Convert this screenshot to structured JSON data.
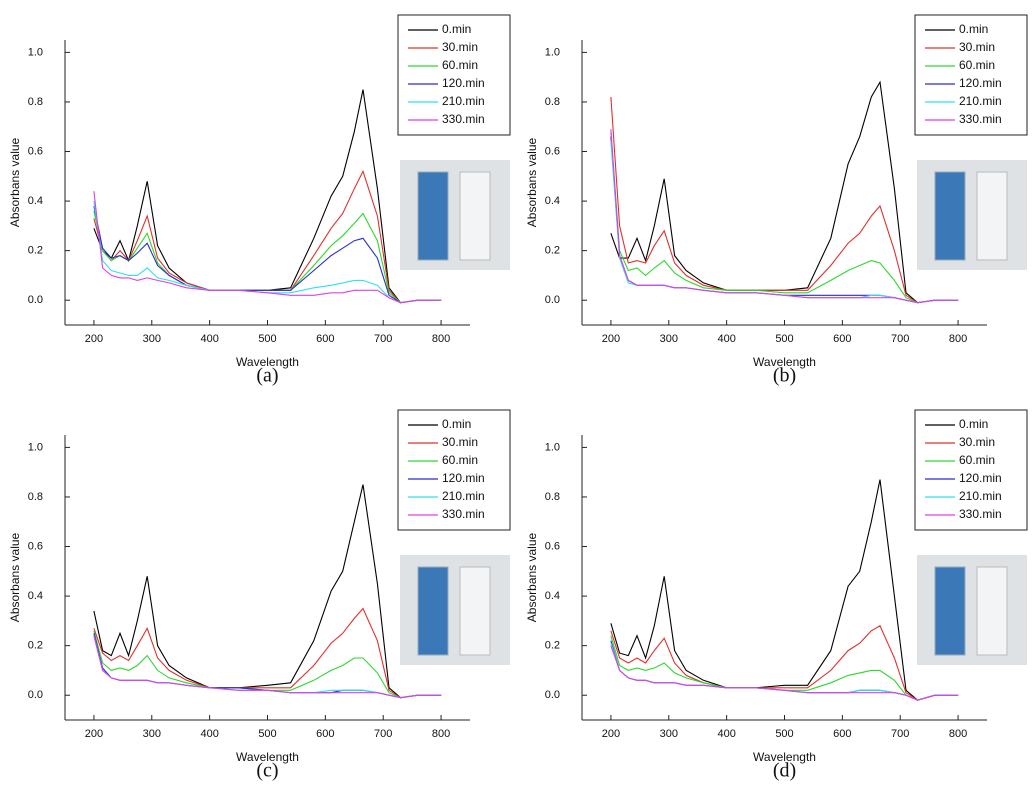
{
  "chart_data": [
    {
      "type": "line",
      "caption": "(a)",
      "xlabel": "Wavelength",
      "ylabel": "Absorbans value",
      "legend": "upper right",
      "x": [
        200,
        215,
        230,
        245,
        260,
        275,
        292,
        310,
        330,
        360,
        400,
        450,
        500,
        540,
        580,
        610,
        630,
        650,
        665,
        690,
        710,
        730,
        760,
        800
      ],
      "xlim": [
        150,
        850
      ],
      "xticks": [
        200,
        300,
        400,
        500,
        600,
        700,
        800
      ],
      "ylim": [
        -0.1,
        1.05
      ],
      "yticks": [
        {
          "value": 0,
          "label": "0.0"
        },
        0.2,
        0.4,
        0.6,
        0.8,
        {
          "value": 1,
          "label": "1.0"
        }
      ],
      "series": [
        {
          "name": "0.min",
          "color": "#000000",
          "values": [
            0.29,
            0.2,
            0.17,
            0.24,
            0.16,
            0.3,
            0.48,
            0.22,
            0.13,
            0.07,
            0.04,
            0.04,
            0.04,
            0.05,
            0.25,
            0.42,
            0.5,
            0.68,
            0.85,
            0.45,
            0.05,
            -0.01,
            0.0,
            0.0
          ]
        },
        {
          "name": "30.min",
          "color": "#e0302a",
          "values": [
            0.33,
            0.2,
            0.16,
            0.2,
            0.16,
            0.24,
            0.34,
            0.17,
            0.11,
            0.07,
            0.04,
            0.04,
            0.04,
            0.04,
            0.18,
            0.29,
            0.35,
            0.45,
            0.52,
            0.34,
            0.04,
            -0.01,
            0.0,
            0.0
          ]
        },
        {
          "name": "60.min",
          "color": "#2dd82d",
          "values": [
            0.36,
            0.2,
            0.16,
            0.18,
            0.16,
            0.21,
            0.27,
            0.15,
            0.1,
            0.06,
            0.04,
            0.04,
            0.04,
            0.04,
            0.14,
            0.22,
            0.26,
            0.31,
            0.35,
            0.24,
            0.03,
            -0.01,
            0.0,
            0.0
          ]
        },
        {
          "name": "120.min",
          "color": "#2b2bd0",
          "values": [
            0.38,
            0.21,
            0.17,
            0.18,
            0.16,
            0.19,
            0.23,
            0.14,
            0.1,
            0.06,
            0.04,
            0.04,
            0.04,
            0.04,
            0.12,
            0.18,
            0.21,
            0.24,
            0.25,
            0.17,
            0.02,
            -0.01,
            0.0,
            0.0
          ]
        },
        {
          "name": "210.min",
          "color": "#2fe0f0",
          "values": [
            0.4,
            0.16,
            0.12,
            0.11,
            0.1,
            0.1,
            0.13,
            0.09,
            0.08,
            0.06,
            0.04,
            0.04,
            0.03,
            0.03,
            0.05,
            0.06,
            0.07,
            0.08,
            0.08,
            0.06,
            0.01,
            -0.01,
            0.0,
            0.0
          ]
        },
        {
          "name": "330.min",
          "color": "#e040e0",
          "values": [
            0.44,
            0.13,
            0.1,
            0.09,
            0.09,
            0.08,
            0.09,
            0.08,
            0.07,
            0.05,
            0.04,
            0.04,
            0.03,
            0.02,
            0.02,
            0.03,
            0.03,
            0.04,
            0.04,
            0.04,
            0.01,
            -0.01,
            0.0,
            0.0
          ]
        }
      ]
    },
    {
      "type": "line",
      "caption": "(b)",
      "xlabel": "Wavelength",
      "ylabel": "Absorbans value",
      "legend": "upper right",
      "x": [
        200,
        215,
        230,
        245,
        260,
        275,
        292,
        310,
        330,
        360,
        400,
        450,
        500,
        540,
        580,
        610,
        630,
        650,
        665,
        690,
        710,
        730,
        760,
        800
      ],
      "xlim": [
        150,
        850
      ],
      "xticks": [
        200,
        300,
        400,
        500,
        600,
        700,
        800
      ],
      "ylim": [
        -0.1,
        1.05
      ],
      "yticks": [
        {
          "value": 0,
          "label": "0.0"
        },
        0.2,
        0.4,
        0.6,
        0.8,
        {
          "value": 1,
          "label": "1.0"
        }
      ],
      "series": [
        {
          "name": "0.min",
          "color": "#000000",
          "values": [
            0.27,
            0.17,
            0.17,
            0.25,
            0.16,
            0.3,
            0.49,
            0.18,
            0.12,
            0.07,
            0.04,
            0.04,
            0.04,
            0.05,
            0.25,
            0.55,
            0.66,
            0.82,
            0.88,
            0.45,
            0.03,
            -0.01,
            0.0,
            0.0
          ]
        },
        {
          "name": "30.min",
          "color": "#e0302a",
          "values": [
            0.82,
            0.3,
            0.15,
            0.16,
            0.15,
            0.22,
            0.28,
            0.15,
            0.1,
            0.06,
            0.04,
            0.04,
            0.04,
            0.04,
            0.14,
            0.23,
            0.27,
            0.34,
            0.38,
            0.2,
            0.02,
            -0.01,
            0.0,
            0.0
          ]
        },
        {
          "name": "60.min",
          "color": "#2dd82d",
          "values": [
            0.68,
            0.2,
            0.12,
            0.13,
            0.1,
            0.13,
            0.16,
            0.11,
            0.08,
            0.05,
            0.04,
            0.04,
            0.03,
            0.03,
            0.08,
            0.12,
            0.14,
            0.16,
            0.15,
            0.08,
            0.01,
            -0.01,
            0.0,
            0.0
          ]
        },
        {
          "name": "120.min",
          "color": "#2b2bd0",
          "values": [
            0.66,
            0.18,
            0.08,
            0.06,
            0.06,
            0.06,
            0.06,
            0.05,
            0.05,
            0.04,
            0.03,
            0.03,
            0.02,
            0.02,
            0.02,
            0.02,
            0.02,
            0.02,
            0.02,
            0.01,
            0.0,
            -0.01,
            0.0,
            0.0
          ]
        },
        {
          "name": "210.min",
          "color": "#2fe0f0",
          "values": [
            0.64,
            0.17,
            0.07,
            0.06,
            0.06,
            0.06,
            0.06,
            0.05,
            0.05,
            0.04,
            0.03,
            0.03,
            0.02,
            0.01,
            0.01,
            0.01,
            0.01,
            0.02,
            0.02,
            0.01,
            0.0,
            -0.01,
            0.0,
            0.0
          ]
        },
        {
          "name": "330.min",
          "color": "#e040e0",
          "values": [
            0.69,
            0.18,
            0.08,
            0.06,
            0.06,
            0.06,
            0.06,
            0.05,
            0.05,
            0.04,
            0.03,
            0.03,
            0.02,
            0.01,
            0.01,
            0.01,
            0.01,
            0.01,
            0.01,
            0.01,
            0.0,
            -0.01,
            0.0,
            0.0
          ]
        }
      ]
    },
    {
      "type": "line",
      "caption": "(c)",
      "xlabel": "Wavelength",
      "ylabel": "Absorbans value",
      "legend": "upper right",
      "x": [
        200,
        215,
        230,
        245,
        260,
        275,
        292,
        310,
        330,
        360,
        400,
        450,
        500,
        540,
        580,
        610,
        630,
        650,
        665,
        690,
        710,
        730,
        760,
        800
      ],
      "xlim": [
        150,
        850
      ],
      "xticks": [
        200,
        300,
        400,
        500,
        600,
        700,
        800
      ],
      "ylim": [
        -0.1,
        1.05
      ],
      "yticks": [
        {
          "value": 0,
          "label": "0.0"
        },
        0.2,
        0.4,
        0.6,
        0.8,
        {
          "value": 1,
          "label": "1.0"
        }
      ],
      "series": [
        {
          "name": "0.min",
          "color": "#000000",
          "values": [
            0.34,
            0.18,
            0.16,
            0.25,
            0.16,
            0.3,
            0.48,
            0.2,
            0.12,
            0.07,
            0.03,
            0.03,
            0.04,
            0.05,
            0.22,
            0.42,
            0.5,
            0.7,
            0.85,
            0.45,
            0.03,
            -0.01,
            0.0,
            0.0
          ]
        },
        {
          "name": "30.min",
          "color": "#e0302a",
          "values": [
            0.27,
            0.17,
            0.14,
            0.16,
            0.14,
            0.2,
            0.27,
            0.15,
            0.1,
            0.06,
            0.03,
            0.03,
            0.03,
            0.03,
            0.12,
            0.21,
            0.25,
            0.31,
            0.35,
            0.22,
            0.02,
            -0.01,
            0.0,
            0.0
          ]
        },
        {
          "name": "60.min",
          "color": "#2dd82d",
          "values": [
            0.26,
            0.13,
            0.1,
            0.11,
            0.1,
            0.12,
            0.16,
            0.1,
            0.07,
            0.05,
            0.03,
            0.03,
            0.02,
            0.02,
            0.06,
            0.1,
            0.12,
            0.15,
            0.15,
            0.09,
            0.01,
            -0.01,
            0.0,
            0.0
          ]
        },
        {
          "name": "120.min",
          "color": "#2b2bd0",
          "values": [
            0.25,
            0.11,
            0.07,
            0.06,
            0.06,
            0.06,
            0.06,
            0.05,
            0.05,
            0.04,
            0.03,
            0.03,
            0.02,
            0.01,
            0.01,
            0.01,
            0.02,
            0.02,
            0.02,
            0.01,
            0.0,
            -0.01,
            0.0,
            0.0
          ]
        },
        {
          "name": "210.min",
          "color": "#2fe0f0",
          "values": [
            0.24,
            0.1,
            0.07,
            0.06,
            0.06,
            0.06,
            0.06,
            0.05,
            0.05,
            0.04,
            0.03,
            0.02,
            0.02,
            0.01,
            0.01,
            0.02,
            0.02,
            0.02,
            0.02,
            0.01,
            0.0,
            -0.01,
            0.0,
            0.0
          ]
        },
        {
          "name": "330.min",
          "color": "#e040e0",
          "values": [
            0.24,
            0.1,
            0.07,
            0.06,
            0.06,
            0.06,
            0.06,
            0.05,
            0.05,
            0.04,
            0.03,
            0.02,
            0.02,
            0.01,
            0.01,
            0.01,
            0.01,
            0.01,
            0.01,
            0.01,
            0.0,
            -0.01,
            0.0,
            0.0
          ]
        }
      ]
    },
    {
      "type": "line",
      "caption": "(d)",
      "xlabel": "Wavelength",
      "ylabel": "Absorbans value",
      "legend": "upper right",
      "x": [
        200,
        215,
        230,
        245,
        260,
        275,
        292,
        310,
        330,
        360,
        400,
        450,
        500,
        540,
        580,
        610,
        630,
        650,
        665,
        690,
        710,
        730,
        760,
        800
      ],
      "xlim": [
        150,
        850
      ],
      "xticks": [
        200,
        300,
        400,
        500,
        600,
        700,
        800
      ],
      "ylim": [
        -0.1,
        1.05
      ],
      "yticks": [
        {
          "value": 0,
          "label": "0.0"
        },
        0.2,
        0.4,
        0.6,
        0.8,
        {
          "value": 1,
          "label": "1.0"
        }
      ],
      "series": [
        {
          "name": "0.min",
          "color": "#000000",
          "values": [
            0.29,
            0.17,
            0.16,
            0.24,
            0.15,
            0.28,
            0.48,
            0.18,
            0.1,
            0.06,
            0.03,
            0.03,
            0.04,
            0.04,
            0.18,
            0.44,
            0.5,
            0.7,
            0.87,
            0.4,
            0.02,
            -0.02,
            0.0,
            0.0
          ]
        },
        {
          "name": "30.min",
          "color": "#e0302a",
          "values": [
            0.26,
            0.15,
            0.13,
            0.15,
            0.13,
            0.18,
            0.23,
            0.13,
            0.08,
            0.05,
            0.03,
            0.03,
            0.03,
            0.03,
            0.1,
            0.18,
            0.21,
            0.26,
            0.28,
            0.15,
            0.01,
            -0.02,
            0.0,
            0.0
          ]
        },
        {
          "name": "60.min",
          "color": "#2dd82d",
          "values": [
            0.24,
            0.12,
            0.1,
            0.11,
            0.1,
            0.11,
            0.13,
            0.09,
            0.07,
            0.05,
            0.03,
            0.03,
            0.02,
            0.02,
            0.05,
            0.08,
            0.09,
            0.1,
            0.1,
            0.06,
            0.0,
            -0.02,
            0.0,
            0.0
          ]
        },
        {
          "name": "120.min",
          "color": "#2b2bd0",
          "values": [
            0.22,
            0.1,
            0.07,
            0.06,
            0.06,
            0.05,
            0.05,
            0.05,
            0.04,
            0.04,
            0.03,
            0.03,
            0.02,
            0.01,
            0.01,
            0.01,
            0.02,
            0.02,
            0.02,
            0.01,
            0.0,
            -0.02,
            0.0,
            0.0
          ]
        },
        {
          "name": "210.min",
          "color": "#2fe0f0",
          "values": [
            0.21,
            0.1,
            0.07,
            0.06,
            0.06,
            0.05,
            0.05,
            0.05,
            0.04,
            0.04,
            0.03,
            0.03,
            0.02,
            0.01,
            0.01,
            0.01,
            0.02,
            0.02,
            0.02,
            0.01,
            0.0,
            -0.02,
            0.0,
            0.0
          ]
        },
        {
          "name": "330.min",
          "color": "#e040e0",
          "values": [
            0.2,
            0.1,
            0.07,
            0.06,
            0.06,
            0.05,
            0.05,
            0.05,
            0.04,
            0.04,
            0.03,
            0.03,
            0.02,
            0.01,
            0.01,
            0.01,
            0.01,
            0.01,
            0.01,
            0.01,
            0.0,
            -0.02,
            0.0,
            0.0
          ]
        }
      ]
    }
  ]
}
